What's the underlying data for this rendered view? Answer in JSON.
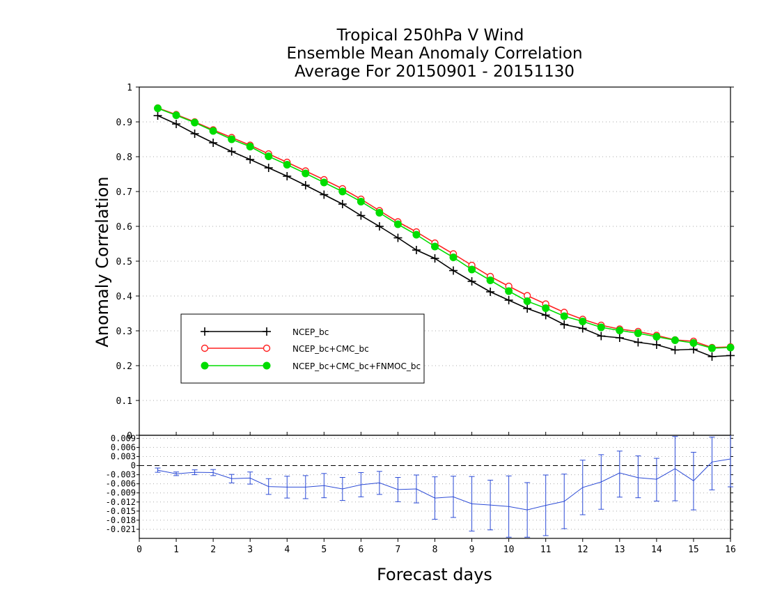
{
  "chart_data": [
    {
      "type": "line",
      "title_lines": [
        "Tropical 250hPa V Wind",
        "Ensemble Mean Anomaly Correlation",
        "Average For 20150901 - 20151130"
      ],
      "ylabel": "Anomaly Correlation",
      "xlabel": "Forecast days",
      "xlim": [
        0,
        16
      ],
      "ylim": [
        0,
        1
      ],
      "x_ticks": [
        "0",
        "1",
        "2",
        "3",
        "4",
        "5",
        "6",
        "7",
        "8",
        "9",
        "10",
        "11",
        "12",
        "13",
        "14",
        "15",
        "16"
      ],
      "y_ticks": [
        "0",
        "0.1",
        "0.2",
        "0.3",
        "0.4",
        "0.5",
        "0.6",
        "0.7",
        "0.8",
        "0.9",
        "1"
      ],
      "grid": "horizontal dotted",
      "legend_position": "lower-left",
      "x": [
        0.5,
        1,
        1.5,
        2,
        2.5,
        3,
        3.5,
        4,
        4.5,
        5,
        5.5,
        6,
        6.5,
        7,
        7.5,
        8,
        8.5,
        9,
        9.5,
        10,
        10.5,
        11,
        11.5,
        12,
        12.5,
        13,
        13.5,
        14,
        14.5,
        15,
        15.5,
        16
      ],
      "series": [
        {
          "name": "NCEP_bc",
          "color": "#000000",
          "marker": "plus",
          "values": [
            0.918,
            0.894,
            0.866,
            0.84,
            0.815,
            0.792,
            0.768,
            0.744,
            0.718,
            0.691,
            0.664,
            0.631,
            0.6,
            0.567,
            0.532,
            0.508,
            0.473,
            0.442,
            0.412,
            0.388,
            0.364,
            0.345,
            0.318,
            0.307,
            0.285,
            0.28,
            0.267,
            0.26,
            0.245,
            0.247,
            0.226,
            0.229
          ]
        },
        {
          "name": "NCEP_bc+CMC_bc",
          "color": "#ff2020",
          "marker": "open-circle",
          "values": [
            0.94,
            0.921,
            0.9,
            0.877,
            0.855,
            0.833,
            0.808,
            0.784,
            0.759,
            0.734,
            0.708,
            0.678,
            0.645,
            0.613,
            0.584,
            0.552,
            0.521,
            0.488,
            0.456,
            0.428,
            0.401,
            0.377,
            0.353,
            0.333,
            0.316,
            0.305,
            0.298,
            0.287,
            0.274,
            0.27,
            0.252,
            0.254
          ]
        },
        {
          "name": "NCEP_bc+CMC_bc+FNMOC_bc",
          "color": "#00dd00",
          "marker": "filled-circle",
          "values": [
            0.939,
            0.919,
            0.898,
            0.874,
            0.85,
            0.829,
            0.801,
            0.777,
            0.752,
            0.726,
            0.7,
            0.671,
            0.639,
            0.606,
            0.576,
            0.542,
            0.511,
            0.476,
            0.445,
            0.414,
            0.385,
            0.365,
            0.342,
            0.327,
            0.31,
            0.301,
            0.293,
            0.283,
            0.273,
            0.265,
            0.25,
            0.252
          ]
        }
      ]
    },
    {
      "type": "line",
      "ylim": [
        -0.024,
        0.01
      ],
      "y_ticks": [
        "0.009",
        "0.006",
        "0.003",
        "0",
        "-0.003",
        "-0.006",
        "-0.009",
        "-0.012",
        "-0.015",
        "-0.018",
        "-0.021"
      ],
      "grid": "horizontal dotted",
      "reference_line": 0,
      "x": [
        0.5,
        1,
        1.5,
        2,
        2.5,
        3,
        3.5,
        4,
        4.5,
        5,
        5.5,
        6,
        6.5,
        7,
        7.5,
        8,
        8.5,
        9,
        9.5,
        10,
        10.5,
        11,
        11.5,
        12,
        12.5,
        13,
        13.5,
        14,
        14.5,
        15,
        15.5,
        16
      ],
      "series": [
        {
          "name": "",
          "color": "#2c4bd6",
          "marker": "errorbar",
          "values": [
            -0.0015,
            -0.0027,
            -0.0022,
            -0.0023,
            -0.0043,
            -0.0041,
            -0.0069,
            -0.0071,
            -0.0071,
            -0.0066,
            -0.0077,
            -0.0063,
            -0.0057,
            -0.0079,
            -0.0077,
            -0.0107,
            -0.0103,
            -0.0126,
            -0.013,
            -0.0135,
            -0.0146,
            -0.0131,
            -0.0118,
            -0.0072,
            -0.0054,
            -0.0024,
            -0.004,
            -0.0045,
            -0.001,
            -0.005,
            0.0012,
            0.0022
          ],
          "err_low": [
            -0.0022,
            -0.0033,
            -0.003,
            -0.0033,
            -0.0057,
            -0.0061,
            -0.0095,
            -0.0107,
            -0.0109,
            -0.0106,
            -0.0115,
            -0.0103,
            -0.0095,
            -0.0119,
            -0.0123,
            -0.0177,
            -0.0171,
            -0.0216,
            -0.0212,
            -0.0236,
            -0.0236,
            -0.0231,
            -0.0208,
            -0.0162,
            -0.0144,
            -0.0104,
            -0.0106,
            -0.0117,
            -0.0116,
            -0.0146,
            -0.008,
            -0.007
          ],
          "err_high": [
            -0.0008,
            -0.0021,
            -0.0014,
            -0.0013,
            -0.0029,
            -0.0021,
            -0.0043,
            -0.0035,
            -0.0033,
            -0.0026,
            -0.0039,
            -0.0023,
            -0.0019,
            -0.0039,
            -0.0031,
            -0.0037,
            -0.0035,
            -0.0036,
            -0.0048,
            -0.0034,
            -0.0056,
            -0.0031,
            -0.0028,
            0.0018,
            0.0036,
            0.0048,
            0.0032,
            0.0024,
            0.0096,
            0.0044,
            0.0094,
            0.011
          ]
        }
      ]
    }
  ]
}
